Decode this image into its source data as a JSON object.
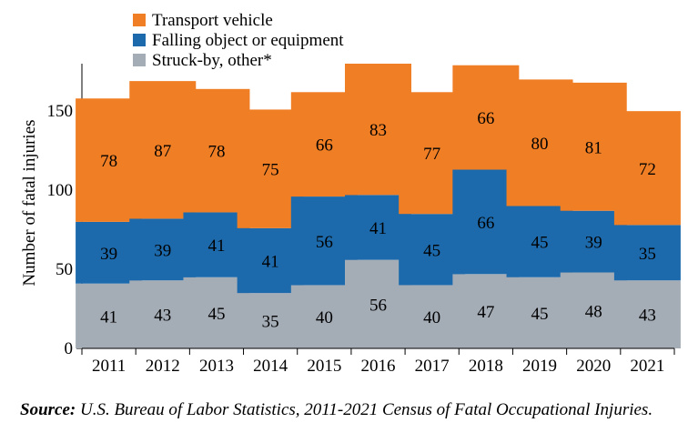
{
  "chart_data": {
    "type": "bar",
    "stacked": true,
    "categories": [
      "2011",
      "2012",
      "2013",
      "2014",
      "2015",
      "2016",
      "2017",
      "2018",
      "2019",
      "2020",
      "2021"
    ],
    "series": [
      {
        "name": "Struck-by, other*",
        "color": "#a4acb6",
        "values": [
          41,
          43,
          45,
          35,
          40,
          56,
          40,
          47,
          45,
          48,
          43
        ]
      },
      {
        "name": "Falling object or equipment",
        "color": "#1c6aac",
        "values": [
          39,
          39,
          41,
          41,
          56,
          41,
          45,
          66,
          45,
          39,
          35
        ]
      },
      {
        "name": "Transport vehicle",
        "color": "#f07e25",
        "values": [
          78,
          87,
          78,
          75,
          66,
          83,
          77,
          66,
          80,
          81,
          72
        ]
      }
    ],
    "legend_order": [
      "Transport vehicle",
      "Falling object or equipment",
      "Struck-by, other*"
    ],
    "legend_position": "top-left",
    "ylabel": "Number of fatal injuries",
    "xlabel": "",
    "ylim": [
      0,
      180
    ],
    "yticks": [
      0,
      50,
      100,
      150
    ],
    "grid": false
  },
  "source": {
    "label": "Source:",
    "text": "U.S. Bureau of Labor Statistics, 2011-2021 Census of Fatal Occupational Injuries."
  }
}
